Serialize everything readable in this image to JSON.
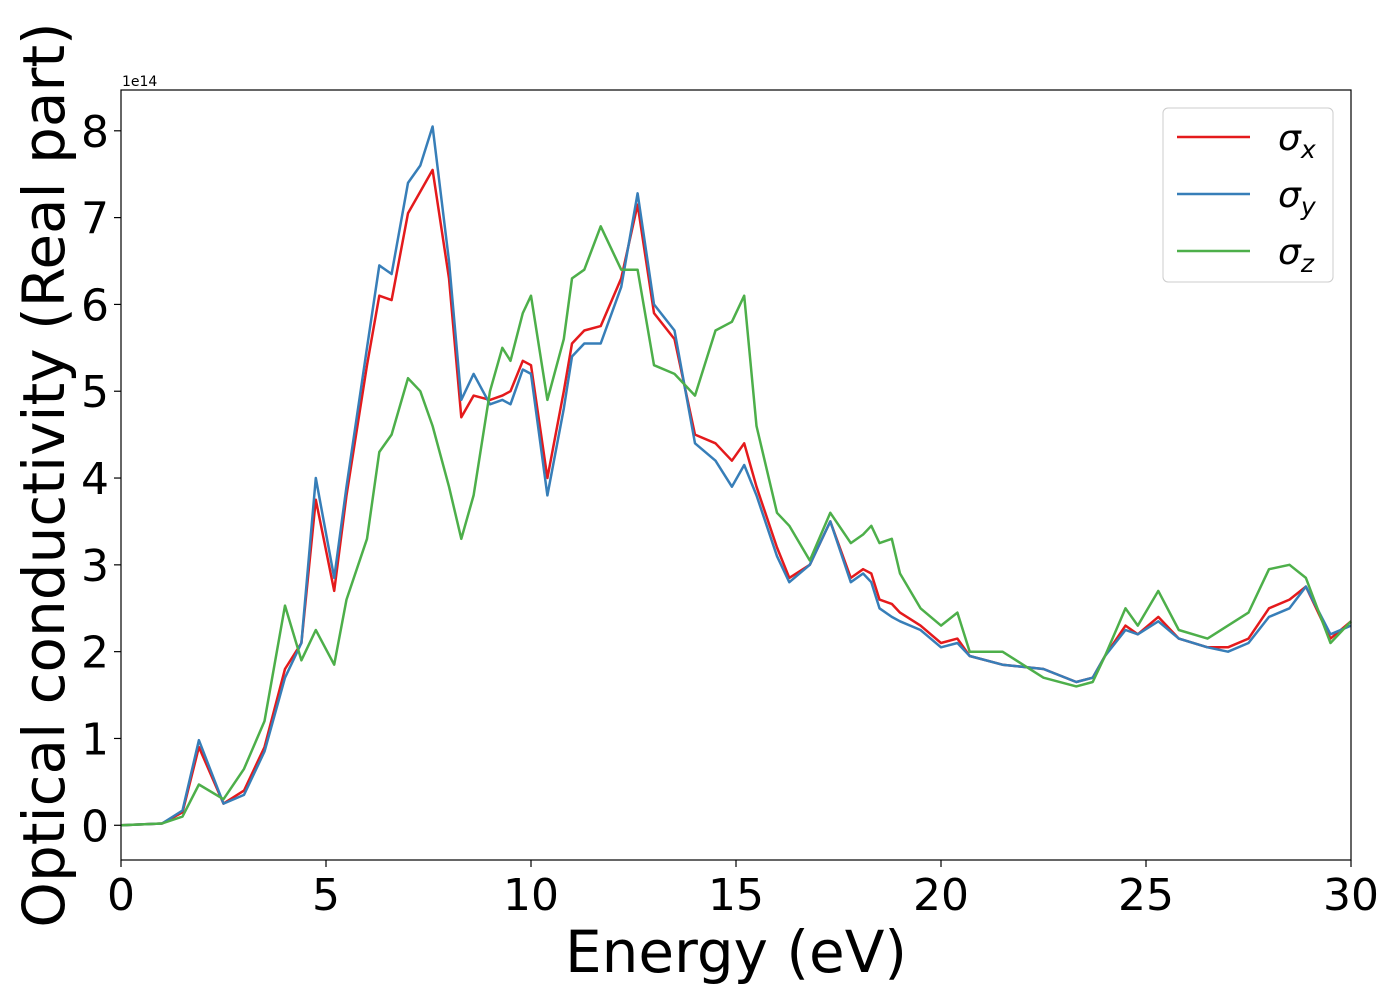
{
  "chart_data": {
    "type": "line",
    "xlabel": "Energy (eV)",
    "ylabel": "Optical conductivity (Real part)",
    "y_offset_label": "1e14",
    "xlim": [
      0,
      30
    ],
    "xticks": [
      0,
      5,
      10,
      15,
      20,
      25,
      30
    ],
    "ylim": [
      -0.4,
      8.47
    ],
    "yticks": [
      0,
      1,
      2,
      3,
      4,
      5,
      6,
      7,
      8
    ],
    "legend": "upper right",
    "x": [
      0,
      1,
      1.5,
      1.9,
      2.5,
      3,
      3.5,
      4,
      4.4,
      4.75,
      5.2,
      5.5,
      6,
      6.3,
      6.6,
      7,
      7.3,
      7.6,
      8,
      8.3,
      8.6,
      9,
      9.3,
      9.5,
      9.8,
      10,
      10.4,
      10.8,
      11,
      11.3,
      11.7,
      12.2,
      12.6,
      13,
      13.5,
      14,
      14.5,
      14.9,
      15.2,
      15.5,
      16,
      16.3,
      16.8,
      17.3,
      17.8,
      18.1,
      18.3,
      18.5,
      18.8,
      19,
      19.5,
      20,
      20.4,
      20.7,
      21.5,
      22.5,
      23.3,
      23.7,
      24,
      24.5,
      24.8,
      25.3,
      25.8,
      26.5,
      27,
      27.5,
      28,
      28.5,
      28.9,
      29.5,
      30
    ],
    "series": [
      {
        "name": "σx",
        "color": "#e41a1c",
        "values": [
          0,
          0.02,
          0.15,
          0.9,
          0.25,
          0.4,
          0.9,
          1.8,
          2.1,
          3.75,
          2.7,
          3.8,
          5.3,
          6.1,
          6.05,
          7.05,
          7.3,
          7.55,
          6.3,
          4.7,
          4.95,
          4.9,
          4.95,
          5.0,
          5.35,
          5.3,
          4.0,
          5.0,
          5.55,
          5.7,
          5.75,
          6.3,
          7.15,
          5.9,
          5.6,
          4.5,
          4.4,
          4.2,
          4.4,
          3.9,
          3.2,
          2.85,
          3.0,
          3.5,
          2.85,
          2.95,
          2.9,
          2.6,
          2.55,
          2.45,
          2.3,
          2.1,
          2.15,
          1.95,
          1.85,
          1.8,
          1.65,
          1.7,
          1.95,
          2.3,
          2.2,
          2.4,
          2.15,
          2.05,
          2.05,
          2.15,
          2.5,
          2.6,
          2.75,
          2.15,
          2.35
        ]
      },
      {
        "name": "σy",
        "color": "#377eb8",
        "values": [
          0,
          0.02,
          0.17,
          0.98,
          0.25,
          0.35,
          0.85,
          1.7,
          2.1,
          4.0,
          2.85,
          3.9,
          5.5,
          6.45,
          6.35,
          7.4,
          7.6,
          8.05,
          6.5,
          4.9,
          5.2,
          4.85,
          4.9,
          4.85,
          5.25,
          5.2,
          3.8,
          4.8,
          5.4,
          5.55,
          5.55,
          6.2,
          7.28,
          6.0,
          5.7,
          4.4,
          4.2,
          3.9,
          4.15,
          3.8,
          3.1,
          2.8,
          3.0,
          3.5,
          2.8,
          2.9,
          2.8,
          2.5,
          2.4,
          2.35,
          2.25,
          2.05,
          2.1,
          1.95,
          1.85,
          1.8,
          1.65,
          1.7,
          1.95,
          2.25,
          2.2,
          2.35,
          2.15,
          2.05,
          2.0,
          2.1,
          2.4,
          2.5,
          2.75,
          2.2,
          2.3
        ]
      },
      {
        "name": "σz",
        "color": "#4daf4a",
        "values": [
          0,
          0.02,
          0.1,
          0.47,
          0.3,
          0.65,
          1.2,
          2.53,
          1.9,
          2.25,
          1.85,
          2.6,
          3.3,
          4.3,
          4.5,
          5.15,
          5.0,
          4.6,
          3.9,
          3.3,
          3.8,
          5.0,
          5.5,
          5.35,
          5.9,
          6.1,
          4.9,
          5.6,
          6.3,
          6.4,
          6.9,
          6.4,
          6.4,
          5.3,
          5.2,
          4.95,
          5.7,
          5.8,
          6.1,
          4.6,
          3.6,
          3.45,
          3.05,
          3.6,
          3.25,
          3.35,
          3.45,
          3.25,
          3.3,
          2.9,
          2.5,
          2.3,
          2.45,
          2.0,
          2.0,
          1.7,
          1.6,
          1.65,
          1.95,
          2.5,
          2.3,
          2.7,
          2.25,
          2.15,
          2.3,
          2.45,
          2.95,
          3.0,
          2.85,
          2.1,
          2.35
        ]
      }
    ]
  }
}
